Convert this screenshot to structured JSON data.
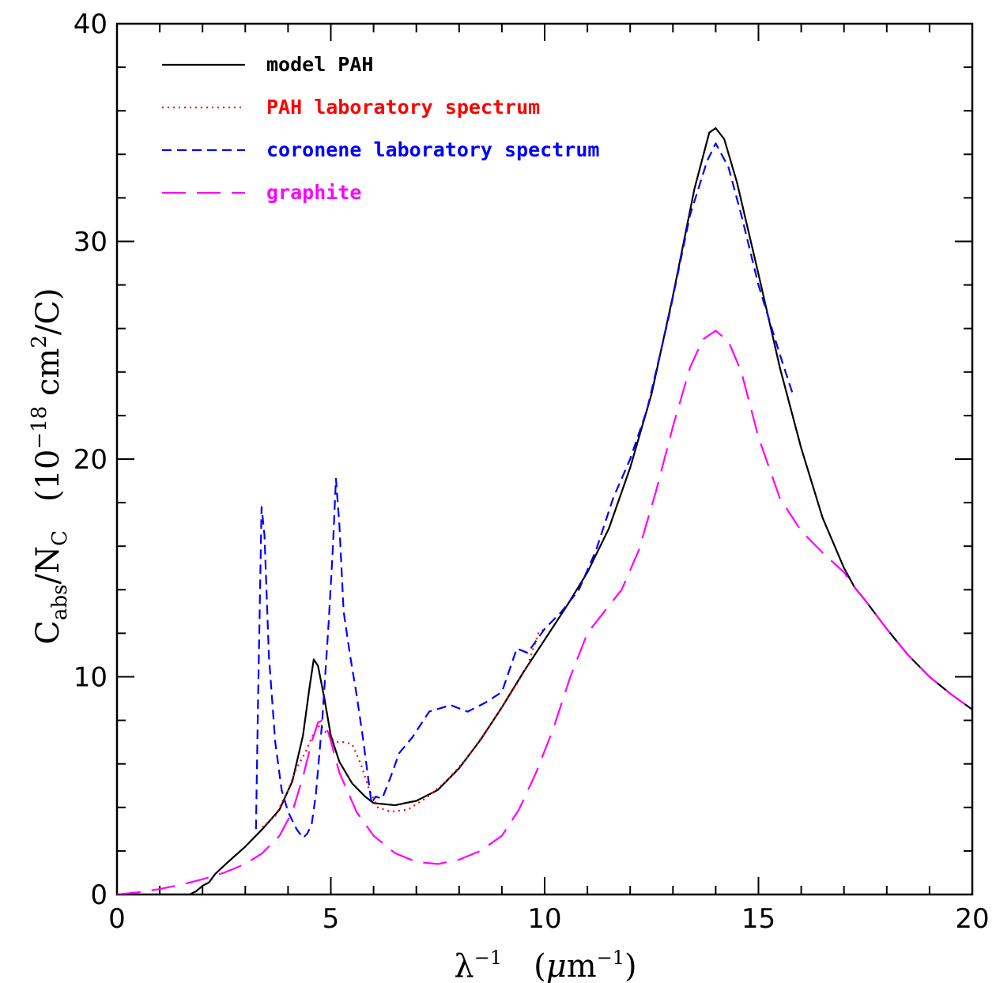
{
  "chart_data": {
    "type": "line",
    "xlabel": {
      "base": "λ",
      "sup1": "−1",
      "unit_open": "(",
      "mu": "μ",
      "m": "m",
      "sup2": "−1",
      "unit_close": ")"
    },
    "ylabel": {
      "c": "C",
      "sub1": "abs",
      "slash": "/",
      "n": "N",
      "sub2": "C",
      "unit1": "(10",
      "sup1": "−18",
      "unit2": " cm",
      "sup2": "2",
      "unit3": "/C)"
    },
    "xlim": [
      0,
      20
    ],
    "ylim": [
      0,
      40
    ],
    "x_ticks": [
      0,
      5,
      10,
      15,
      20
    ],
    "y_ticks": [
      0,
      10,
      20,
      30,
      40
    ],
    "grid": false,
    "legend_position": "top-left",
    "series": [
      {
        "name": "model PAH",
        "color": "#000000",
        "style": "solid",
        "points": [
          [
            0,
            0
          ],
          [
            1.7,
            0
          ],
          [
            1.85,
            0.15
          ],
          [
            2.0,
            0.4
          ],
          [
            2.15,
            0.55
          ],
          [
            2.3,
            0.95
          ],
          [
            2.6,
            1.5
          ],
          [
            3.0,
            2.2
          ],
          [
            3.4,
            3.0
          ],
          [
            3.8,
            3.9
          ],
          [
            4.1,
            5.2
          ],
          [
            4.35,
            7.3
          ],
          [
            4.5,
            9.5
          ],
          [
            4.6,
            10.8
          ],
          [
            4.7,
            10.5
          ],
          [
            4.85,
            9.0
          ],
          [
            5.0,
            7.3
          ],
          [
            5.2,
            6.1
          ],
          [
            5.5,
            5.1
          ],
          [
            5.8,
            4.5
          ],
          [
            6.0,
            4.2
          ],
          [
            6.5,
            4.1
          ],
          [
            7.0,
            4.3
          ],
          [
            7.5,
            4.8
          ],
          [
            8.0,
            5.8
          ],
          [
            8.5,
            7.1
          ],
          [
            9.0,
            8.6
          ],
          [
            9.5,
            10.2
          ],
          [
            10.0,
            11.7
          ],
          [
            10.5,
            13.2
          ],
          [
            11.0,
            14.8
          ],
          [
            11.5,
            16.8
          ],
          [
            12.0,
            19.6
          ],
          [
            12.5,
            23.0
          ],
          [
            13.0,
            27.5
          ],
          [
            13.5,
            32.4
          ],
          [
            13.85,
            35.0
          ],
          [
            14.0,
            35.2
          ],
          [
            14.2,
            34.7
          ],
          [
            14.5,
            32.7
          ],
          [
            15.0,
            28.5
          ],
          [
            15.5,
            24.2
          ],
          [
            16.0,
            20.5
          ],
          [
            16.5,
            17.3
          ],
          [
            17.0,
            15.0
          ],
          [
            17.25,
            14.1
          ],
          [
            17.5,
            13.5
          ],
          [
            18.0,
            12.2
          ],
          [
            18.5,
            11.0
          ],
          [
            19.0,
            10.0
          ],
          [
            19.5,
            9.2
          ],
          [
            20.0,
            8.5
          ]
        ]
      },
      {
        "name": "PAH laboratory spectrum",
        "color": "#ff0000",
        "style": "dotted",
        "points": [
          [
            3.4,
            3.1
          ],
          [
            3.7,
            3.6
          ],
          [
            4.0,
            4.8
          ],
          [
            4.2,
            5.8
          ],
          [
            4.4,
            6.5
          ],
          [
            4.6,
            7.4
          ],
          [
            4.75,
            7.8
          ],
          [
            4.9,
            7.4
          ],
          [
            5.1,
            7.0
          ],
          [
            5.3,
            7.0
          ],
          [
            5.5,
            6.9
          ],
          [
            5.7,
            6.0
          ],
          [
            5.9,
            4.8
          ],
          [
            6.1,
            4.0
          ],
          [
            6.4,
            3.8
          ],
          [
            6.8,
            3.9
          ],
          [
            7.2,
            4.4
          ],
          [
            7.7,
            5.2
          ],
          [
            8.2,
            6.3
          ],
          [
            8.7,
            7.7
          ],
          [
            9.2,
            9.2
          ],
          [
            9.6,
            10.5
          ],
          [
            9.85,
            12.0
          ],
          [
            10.0,
            12.2
          ]
        ]
      },
      {
        "name": "coronene laboratory spectrum",
        "color": "#0000ff",
        "style": "dashed",
        "points": [
          [
            3.25,
            3.0
          ],
          [
            3.3,
            9.0
          ],
          [
            3.38,
            17.8
          ],
          [
            3.45,
            16.5
          ],
          [
            3.55,
            11.0
          ],
          [
            3.7,
            7.0
          ],
          [
            3.85,
            4.8
          ],
          [
            4.0,
            3.8
          ],
          [
            4.2,
            3.0
          ],
          [
            4.35,
            2.6
          ],
          [
            4.45,
            2.8
          ],
          [
            4.55,
            3.2
          ],
          [
            4.65,
            4.6
          ],
          [
            4.8,
            8.0
          ],
          [
            4.95,
            12.5
          ],
          [
            5.05,
            16.0
          ],
          [
            5.12,
            19.1
          ],
          [
            5.2,
            17.0
          ],
          [
            5.3,
            13.0
          ],
          [
            5.45,
            11.0
          ],
          [
            5.6,
            9.2
          ],
          [
            5.75,
            7.2
          ],
          [
            5.95,
            4.2
          ],
          [
            6.05,
            4.5
          ],
          [
            6.2,
            4.4
          ],
          [
            6.4,
            5.4
          ],
          [
            6.6,
            6.5
          ],
          [
            6.9,
            7.2
          ],
          [
            7.3,
            8.4
          ],
          [
            7.8,
            8.7
          ],
          [
            8.2,
            8.4
          ],
          [
            8.6,
            8.8
          ],
          [
            9.0,
            9.3
          ],
          [
            9.35,
            11.3
          ],
          [
            9.6,
            11.1
          ],
          [
            10.0,
            12.2
          ],
          [
            10.4,
            13.0
          ],
          [
            10.8,
            14.0
          ],
          [
            11.2,
            15.8
          ],
          [
            11.6,
            18.2
          ],
          [
            12.0,
            20.0
          ],
          [
            12.4,
            22.3
          ],
          [
            12.9,
            26.5
          ],
          [
            13.4,
            31.2
          ],
          [
            13.8,
            33.7
          ],
          [
            14.0,
            34.5
          ],
          [
            14.3,
            33.4
          ],
          [
            14.6,
            31.2
          ],
          [
            15.0,
            28.0
          ],
          [
            15.5,
            24.8
          ],
          [
            15.8,
            23.0
          ]
        ]
      },
      {
        "name": "graphite",
        "color": "#ff00ff",
        "style": "longdash",
        "points": [
          [
            0,
            0
          ],
          [
            0.5,
            0.1
          ],
          [
            1.0,
            0.25
          ],
          [
            1.5,
            0.45
          ],
          [
            2.0,
            0.7
          ],
          [
            2.5,
            1.0
          ],
          [
            3.0,
            1.4
          ],
          [
            3.4,
            1.9
          ],
          [
            3.8,
            2.7
          ],
          [
            4.1,
            3.8
          ],
          [
            4.35,
            5.4
          ],
          [
            4.55,
            7.0
          ],
          [
            4.7,
            7.9
          ],
          [
            4.8,
            8.0
          ],
          [
            4.95,
            7.4
          ],
          [
            5.2,
            5.6
          ],
          [
            5.6,
            3.8
          ],
          [
            6.0,
            2.7
          ],
          [
            6.5,
            1.9
          ],
          [
            7.0,
            1.5
          ],
          [
            7.5,
            1.4
          ],
          [
            8.0,
            1.6
          ],
          [
            8.5,
            2.0
          ],
          [
            9.0,
            2.7
          ],
          [
            9.4,
            3.9
          ],
          [
            9.8,
            5.6
          ],
          [
            10.2,
            7.6
          ],
          [
            10.6,
            10.0
          ],
          [
            11.0,
            12.0
          ],
          [
            11.4,
            13.0
          ],
          [
            11.8,
            14.0
          ],
          [
            12.2,
            15.8
          ],
          [
            12.6,
            18.5
          ],
          [
            13.0,
            21.5
          ],
          [
            13.4,
            24.2
          ],
          [
            13.7,
            25.5
          ],
          [
            14.0,
            25.9
          ],
          [
            14.3,
            25.4
          ],
          [
            14.6,
            24.0
          ],
          [
            15.0,
            21.0
          ],
          [
            15.5,
            18.2
          ],
          [
            16.0,
            16.7
          ],
          [
            16.5,
            15.7
          ],
          [
            17.0,
            14.8
          ],
          [
            17.25,
            14.1
          ],
          [
            17.5,
            13.5
          ],
          [
            18.0,
            12.2
          ],
          [
            18.5,
            11.0
          ],
          [
            19.0,
            10.0
          ],
          [
            19.5,
            9.2
          ],
          [
            20.0,
            8.5
          ]
        ]
      }
    ]
  }
}
